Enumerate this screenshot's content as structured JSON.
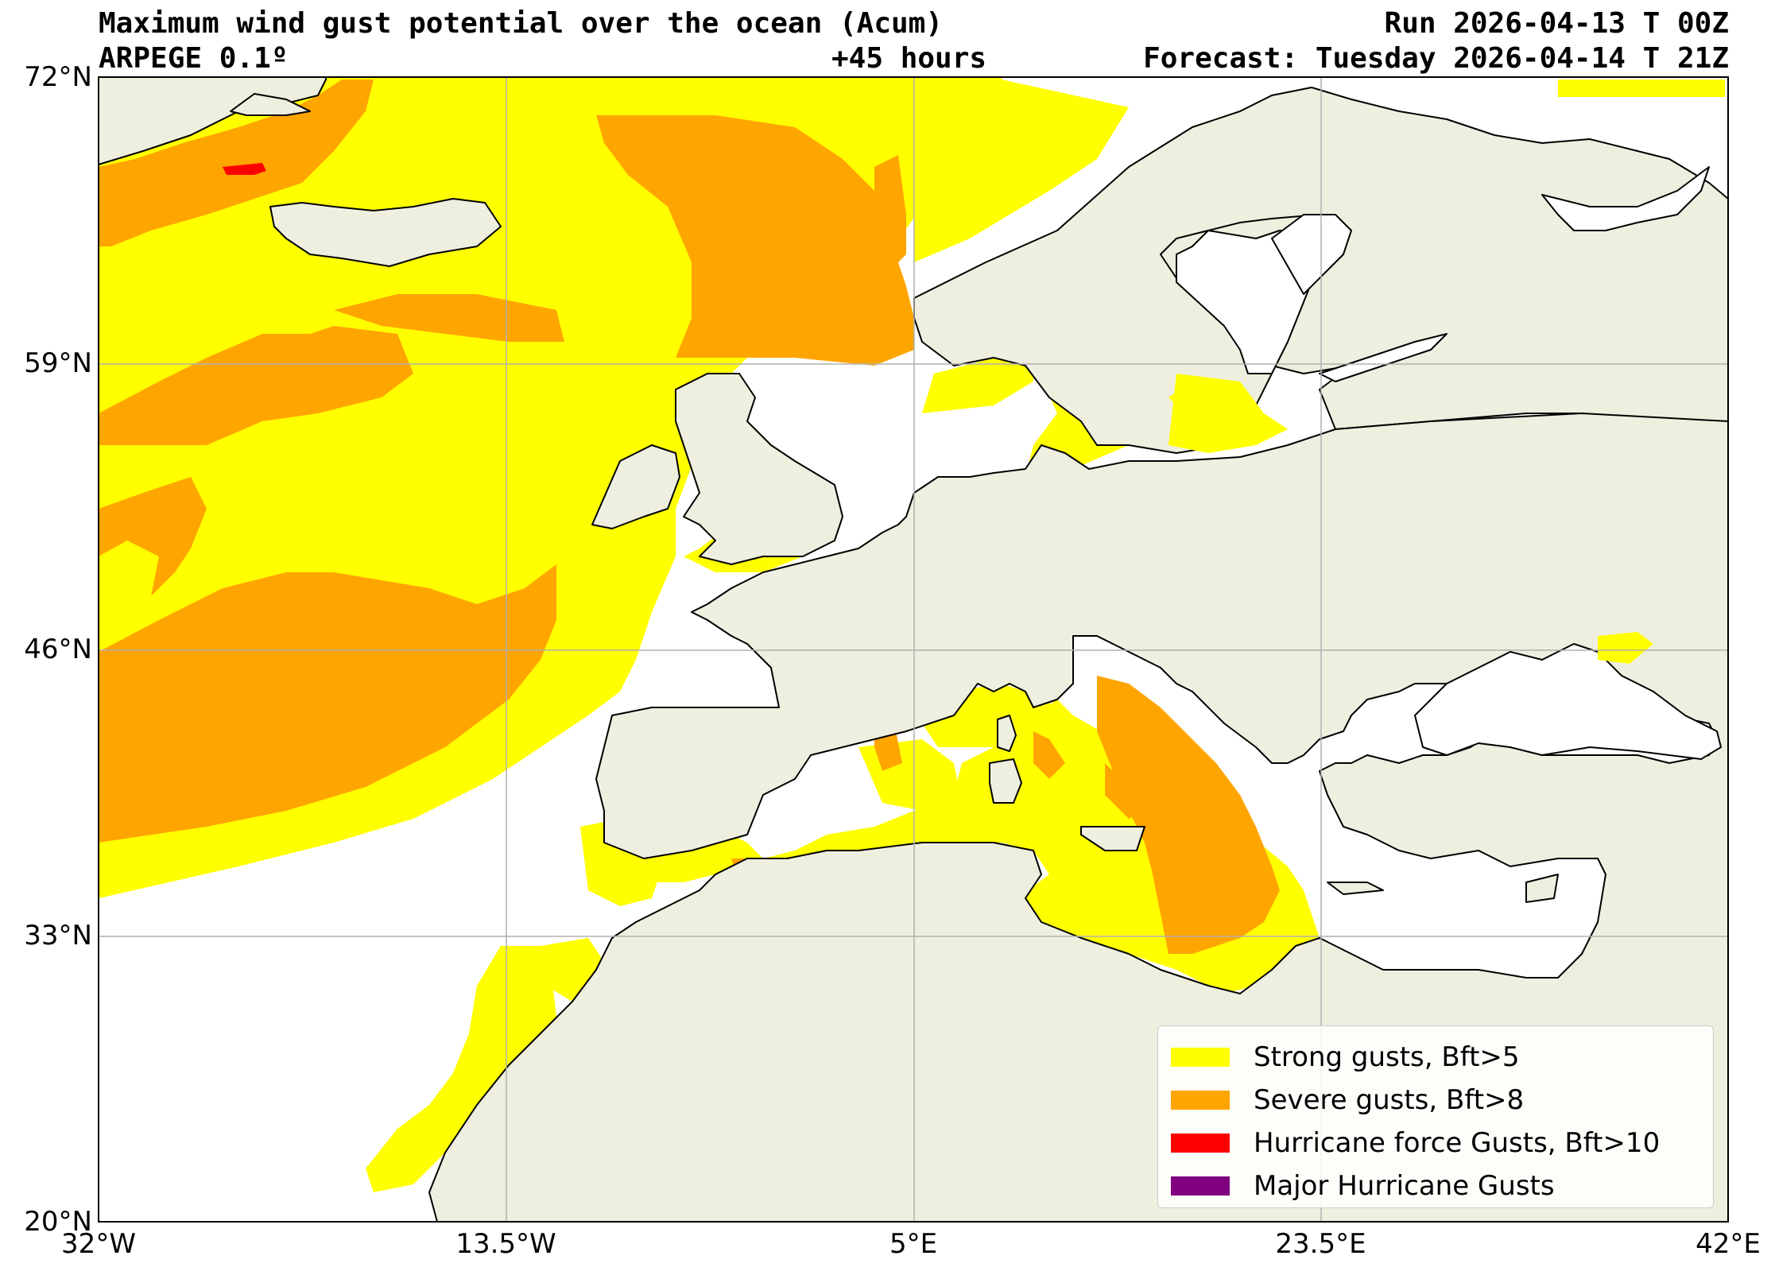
{
  "header": {
    "title": "Maximum wind gust potential over the ocean (Acum)",
    "model": "ARPEGE 0.1º",
    "lead_time": "+45 hours",
    "run": "Run 2026-04-13 T 00Z",
    "forecast": "Forecast: Tuesday 2026-04-14 T 21Z"
  },
  "map": {
    "lon_range": [
      -32,
      42
    ],
    "lat_range": [
      20,
      72
    ],
    "land_color": "#efefdf",
    "ocean_color": "#ffffff",
    "gridlines": true,
    "lon_ticks": [
      {
        "value": -32,
        "label": "32°W"
      },
      {
        "value": -13.5,
        "label": "13.5°W"
      },
      {
        "value": 5,
        "label": "5°E"
      },
      {
        "value": 23.5,
        "label": "23.5°E"
      },
      {
        "value": 42,
        "label": "42°E"
      }
    ],
    "lat_ticks": [
      {
        "value": 72,
        "label": "72°N"
      },
      {
        "value": 59,
        "label": "59°N"
      },
      {
        "value": 46,
        "label": "46°N"
      },
      {
        "value": 33,
        "label": "33°N"
      },
      {
        "value": 20,
        "label": "20°N"
      }
    ]
  },
  "legend": {
    "placement": "bottom-right",
    "items": [
      {
        "label": "Strong gusts, Bft>5",
        "color": "#ffff00"
      },
      {
        "label": "Severe gusts, Bft>8",
        "color": "#ffa500"
      },
      {
        "label": "Hurricane force Gusts, Bft>10",
        "color": "#ff0000"
      },
      {
        "label": "Major Hurricane Gusts",
        "color": "#800080"
      }
    ]
  }
}
